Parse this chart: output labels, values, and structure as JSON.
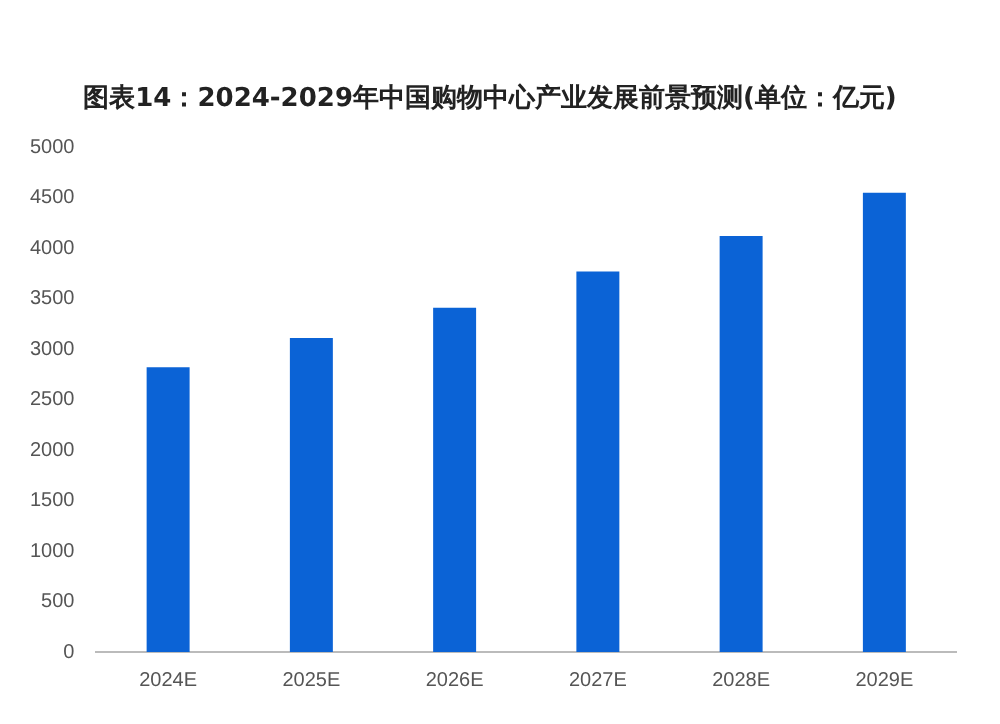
{
  "chart_data": {
    "type": "bar",
    "title": "图表14：2024-2029年中国购物中心产业发展前景预测(单位：亿元)",
    "categories": [
      "2024E",
      "2025E",
      "2026E",
      "2027E",
      "2028E",
      "2029E"
    ],
    "values": [
      2820,
      3110,
      3410,
      3770,
      4120,
      4550
    ],
    "color": "#0b63d6",
    "ylim": [
      0,
      5000
    ],
    "yticks": [
      0,
      500,
      1000,
      1500,
      2000,
      2500,
      3000,
      3500,
      4000,
      4500,
      5000
    ],
    "grid": false,
    "legend": false
  }
}
